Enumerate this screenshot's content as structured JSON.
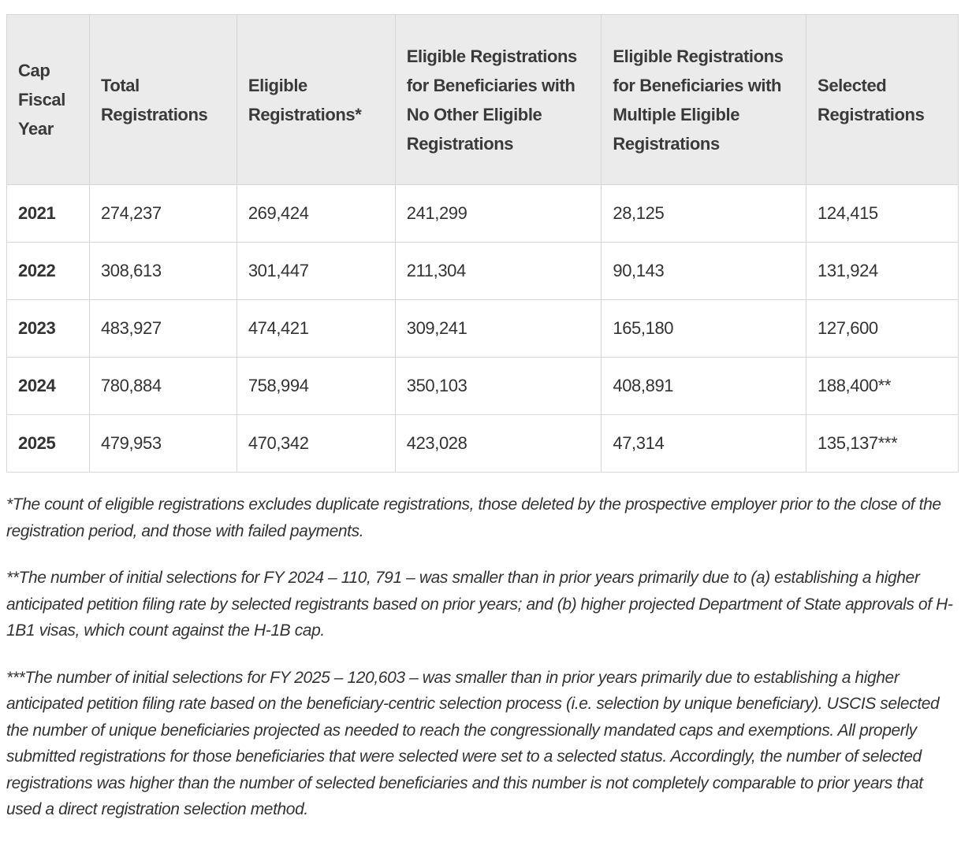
{
  "table": {
    "headers": [
      "Cap Fiscal Year",
      "Total Registrations",
      "Eligible Registrations*",
      "Eligible Registrations for Beneficiaries with No Other Eligible Registrations",
      "Eligible Registrations for Beneficiaries with Multiple Eligible Registrations",
      "Selected Registrations"
    ],
    "rows": [
      [
        "2021",
        "274,237",
        "269,424",
        "241,299",
        "28,125",
        "124,415"
      ],
      [
        "2022",
        "308,613",
        "301,447",
        "211,304",
        "90,143",
        "131,924"
      ],
      [
        "2023",
        "483,927",
        "474,421",
        "309,241",
        "165,180",
        "127,600"
      ],
      [
        "2024",
        "780,884",
        "758,994",
        "350,103",
        "408,891",
        "188,400**"
      ],
      [
        "2025",
        "479,953",
        "470,342",
        "423,028",
        "47,314",
        "135,137***"
      ]
    ]
  },
  "footnotes": [
    "*The count of eligible registrations excludes duplicate registrations, those deleted by the prospective employer prior to the close of the registration period, and those with failed payments.",
    "**The number of initial selections for FY 2024 – 110, 791 – was smaller than in prior years primarily due to (a) establishing a higher anticipated petition filing rate by selected registrants based on prior years; and (b) higher projected Department of State approvals of H-1B1 visas, which count against the H-1B cap.",
    "***The number of initial selections for FY 2025 – 120,603 – was smaller than in prior years primarily due to establishing a higher anticipated petition filing rate based on the beneficiary-centric selection process (i.e. selection by unique beneficiary). USCIS selected the number of unique beneficiaries projected as needed to reach the congressionally mandated caps and exemptions. All properly submitted registrations for those beneficiaries that were selected were set to a selected status. Accordingly, the number of selected registrations was higher than the number of selected beneficiaries and this number is not completely comparable to prior years that used a direct registration selection method."
  ]
}
